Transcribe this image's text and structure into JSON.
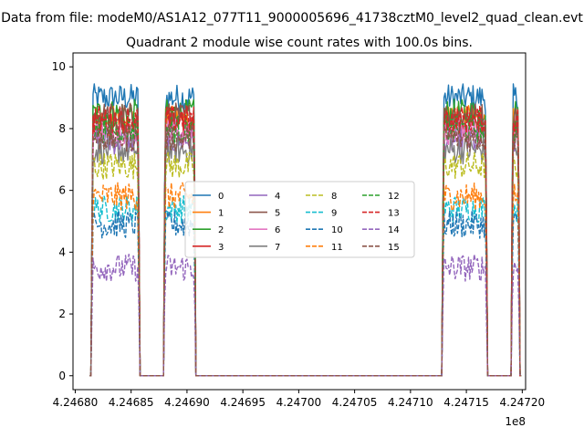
{
  "figure": {
    "suptitle": "Data from file: modeM0/AS1A12_077T11_9000005696_41738cztM0_level2_quad_clean.evt",
    "offset_text": "1e8"
  },
  "colors": [
    "#1f77b4",
    "#ff7f0e",
    "#2ca02c",
    "#d62728",
    "#9467bd",
    "#8c564b",
    "#e377c2",
    "#7f7f7f",
    "#bcbd22",
    "#17becf"
  ],
  "chart_data": {
    "type": "line",
    "title": "Quadrant 2 module wise count rates with 100.0s bins.",
    "xlabel": "",
    "ylabel": "",
    "xlim": [
      424679800,
      424720300
    ],
    "ylim": [
      -0.45,
      10.45
    ],
    "x_ticks": [
      424680000,
      424685000,
      424690000,
      424695000,
      424700000,
      424705000,
      424710000,
      424715000,
      424720000
    ],
    "x_tick_labels": [
      "4.24680",
      "4.24685",
      "4.24690",
      "4.24695",
      "4.24700",
      "4.24705",
      "4.24710",
      "4.24715",
      "4.24720"
    ],
    "y_ticks": [
      0,
      2,
      4,
      6,
      8,
      10
    ],
    "y_tick_labels": [
      "0",
      "2",
      "4",
      "6",
      "8",
      "10"
    ],
    "grid": false,
    "legend_placement": "center",
    "legend_columns": 4,
    "segments": [
      {
        "start": 424681400,
        "end": 424685800
      },
      {
        "start": 424687900,
        "end": 424690800
      },
      {
        "start": 424712800,
        "end": 424716900
      },
      {
        "start": 424719000,
        "end": 424719800
      }
    ],
    "series": [
      {
        "name": "0",
        "level": 8.8,
        "style": "solid"
      },
      {
        "name": "1",
        "level": 8.3,
        "style": "solid"
      },
      {
        "name": "2",
        "level": 8.5,
        "style": "solid"
      },
      {
        "name": "3",
        "level": 8.1,
        "style": "solid"
      },
      {
        "name": "4",
        "level": 7.6,
        "style": "solid"
      },
      {
        "name": "5",
        "level": 8.4,
        "style": "solid"
      },
      {
        "name": "6",
        "level": 7.9,
        "style": "solid"
      },
      {
        "name": "7",
        "level": 7.3,
        "style": "solid"
      },
      {
        "name": "8",
        "level": 6.8,
        "style": "dashed"
      },
      {
        "name": "9",
        "level": 5.4,
        "style": "dashed"
      },
      {
        "name": "10",
        "level": 4.9,
        "style": "dashed"
      },
      {
        "name": "11",
        "level": 5.8,
        "style": "dashed"
      },
      {
        "name": "12",
        "level": 8.0,
        "style": "dashed"
      },
      {
        "name": "13",
        "level": 8.3,
        "style": "dashed"
      },
      {
        "name": "14",
        "level": 3.5,
        "style": "dashed"
      },
      {
        "name": "15",
        "level": 7.7,
        "style": "dashed"
      }
    ]
  }
}
